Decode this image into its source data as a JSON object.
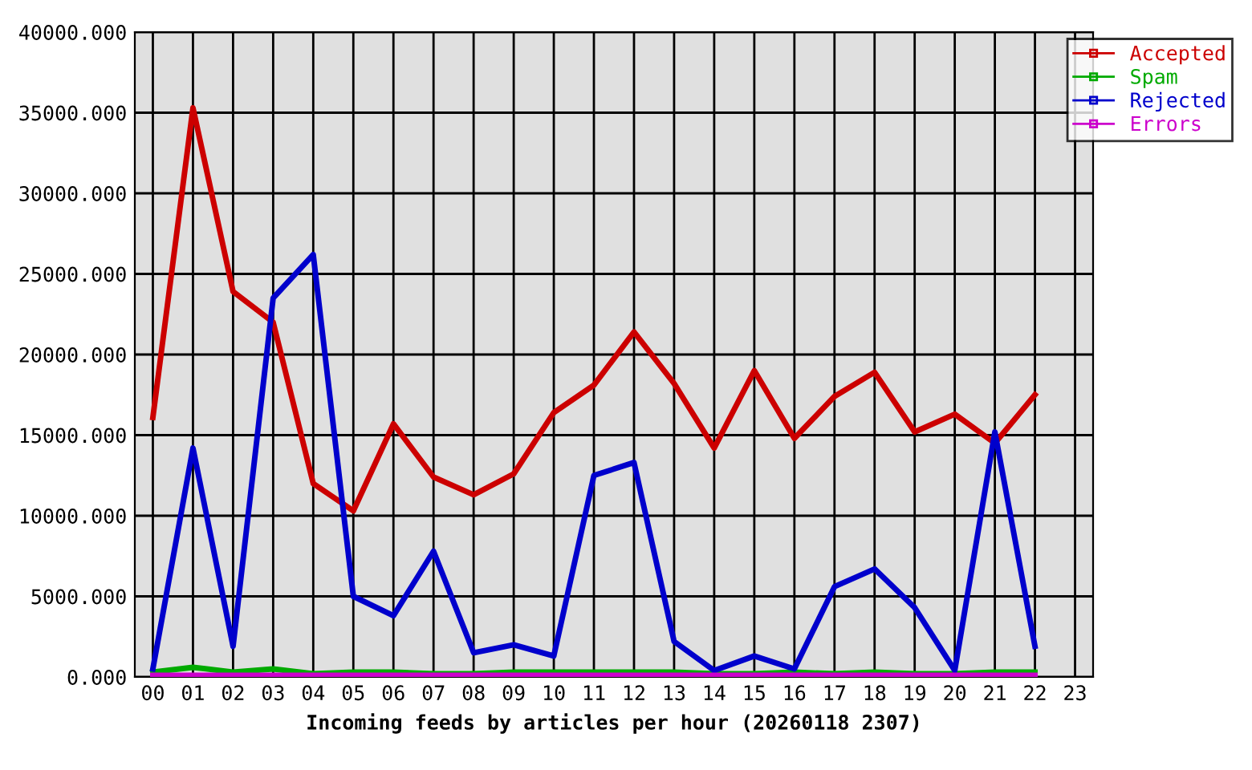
{
  "chart_data": {
    "type": "line",
    "xlabel": "Incoming feeds by articles per hour (20260118 2307)",
    "categories": [
      "00",
      "01",
      "02",
      "03",
      "04",
      "05",
      "06",
      "07",
      "08",
      "09",
      "10",
      "11",
      "12",
      "13",
      "14",
      "15",
      "16",
      "17",
      "18",
      "19",
      "20",
      "21",
      "22",
      "23"
    ],
    "series": [
      {
        "name": "Accepted",
        "color": "#cc0000",
        "values": [
          16100,
          35300,
          23900,
          22000,
          12000,
          10300,
          15700,
          12400,
          11300,
          12600,
          16400,
          18100,
          21400,
          18200,
          14200,
          19000,
          14800,
          17400,
          18900,
          15200,
          16300,
          14500,
          17500,
          null
        ]
      },
      {
        "name": "Spam",
        "color": "#00aa00",
        "values": [
          300,
          600,
          300,
          500,
          200,
          300,
          300,
          200,
          200,
          300,
          300,
          300,
          300,
          300,
          200,
          200,
          300,
          200,
          300,
          200,
          200,
          300,
          300,
          null
        ]
      },
      {
        "name": "Rejected",
        "color": "#0000cc",
        "values": [
          500,
          14200,
          1900,
          23500,
          26200,
          5000,
          3800,
          7800,
          1500,
          2000,
          1300,
          12500,
          13300,
          2200,
          400,
          1300,
          500,
          5600,
          6700,
          4300,
          400,
          15200,
          1900,
          null
        ]
      },
      {
        "name": "Errors",
        "color": "#cc00cc",
        "values": [
          100,
          100,
          100,
          100,
          100,
          100,
          100,
          100,
          100,
          100,
          100,
          100,
          100,
          100,
          100,
          100,
          100,
          100,
          100,
          100,
          100,
          100,
          100,
          null
        ]
      }
    ],
    "ylim": [
      0,
      40000
    ],
    "yticks": [
      {
        "value": 0,
        "label": "0.000"
      },
      {
        "value": 5000,
        "label": "5000.000"
      },
      {
        "value": 10000,
        "label": "10000.000"
      },
      {
        "value": 15000,
        "label": "15000.000"
      },
      {
        "value": 20000,
        "label": "20000.000"
      },
      {
        "value": 25000,
        "label": "25000.000"
      },
      {
        "value": 30000,
        "label": "30000.000"
      },
      {
        "value": 35000,
        "label": "35000.000"
      },
      {
        "value": 40000,
        "label": "40000.000"
      }
    ],
    "grid": true,
    "legend": "top right",
    "marker": "none",
    "line_style": "solid"
  }
}
